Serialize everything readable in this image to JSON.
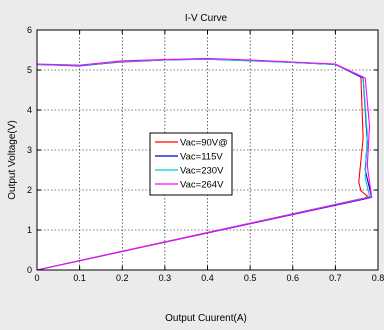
{
  "chart_data": {
    "type": "line",
    "title": "I-V Curve",
    "xlabel": "Output Cuurent(A)",
    "ylabel": "Output Voltage(V)",
    "xlim": [
      0,
      0.8
    ],
    "ylim": [
      0,
      6
    ],
    "xticks": [
      0,
      0.1,
      0.2,
      0.3,
      0.4,
      0.5,
      0.6,
      0.7,
      0.8
    ],
    "xtick_labels": [
      "0",
      "0.1",
      "0.2",
      "0.3",
      "0.4",
      "0.5",
      "0.6",
      "0.7",
      "0.8"
    ],
    "yticks": [
      0,
      1,
      2,
      3,
      4,
      5,
      6
    ],
    "ytick_labels": [
      "0",
      "1",
      "2",
      "3",
      "4",
      "5",
      "6"
    ],
    "grid": true,
    "grid_style": "dotted",
    "legend_position": "center-left",
    "series": [
      {
        "name": "Vac=90V@",
        "color": "#ff0000",
        "x": [
          0,
          0.1,
          0.2,
          0.3,
          0.4,
          0.5,
          0.6,
          0.7,
          0.76,
          0.765,
          0.755,
          0.76,
          0.775,
          0.77,
          0.76,
          0
        ],
        "y": [
          5.14,
          5.11,
          5.2,
          5.25,
          5.27,
          5.23,
          5.19,
          5.14,
          4.83,
          3.3,
          2.2,
          1.98,
          1.85,
          1.8,
          1.78,
          0
        ]
      },
      {
        "name": "Vac=115V",
        "color": "#0000cc",
        "x": [
          0,
          0.1,
          0.2,
          0.3,
          0.4,
          0.5,
          0.6,
          0.7,
          0.755,
          0.765,
          0.775,
          0.77,
          0.785,
          0.77,
          0
        ],
        "y": [
          5.14,
          5.1,
          5.21,
          5.25,
          5.28,
          5.24,
          5.19,
          5.14,
          4.85,
          4.8,
          3.2,
          2.5,
          1.82,
          1.78,
          0
        ]
      },
      {
        "name": "Vac=230V",
        "color": "#00cccc",
        "x": [
          0,
          0.1,
          0.2,
          0.3,
          0.4,
          0.5,
          0.6,
          0.7,
          0.765,
          0.775,
          0.77,
          0.78,
          0.77,
          0
        ],
        "y": [
          5.14,
          5.11,
          5.21,
          5.25,
          5.27,
          5.23,
          5.19,
          5.14,
          4.82,
          3.4,
          2.3,
          1.85,
          1.8,
          0
        ]
      },
      {
        "name": "Vac=264V",
        "color": "#ff00ff",
        "x": [
          0,
          0.1,
          0.2,
          0.3,
          0.4,
          0.5,
          0.6,
          0.7,
          0.77,
          0.78,
          0.775,
          0.785,
          0.77,
          0
        ],
        "y": [
          5.15,
          5.12,
          5.23,
          5.26,
          5.29,
          5.25,
          5.2,
          5.15,
          4.8,
          3.6,
          2.6,
          1.83,
          1.79,
          0
        ]
      }
    ]
  }
}
